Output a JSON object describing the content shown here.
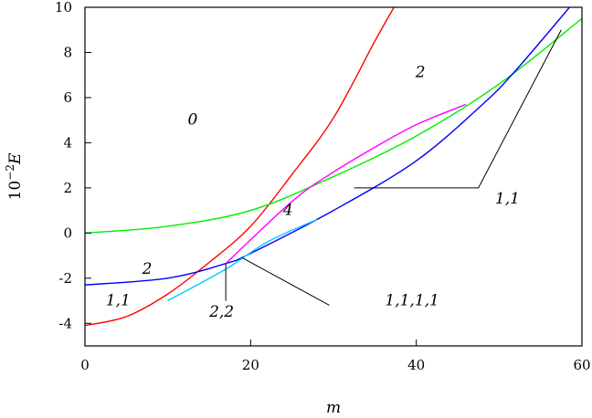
{
  "chart_data": {
    "type": "line",
    "title": "",
    "xlabel": "m",
    "ylabel": {
      "base": "10",
      "exponent": "−2",
      "symbol": "E"
    },
    "xlim": [
      0,
      60
    ],
    "ylim": [
      -5,
      10
    ],
    "x_ticks": [
      0,
      20,
      40,
      60
    ],
    "y_ticks": [
      -4,
      -2,
      0,
      2,
      4,
      6,
      8,
      10
    ],
    "grid": false,
    "legend": "none",
    "series": [
      {
        "color": "#ff0000",
        "x": [
          0,
          5,
          10,
          15,
          20,
          25,
          30,
          35,
          37.3
        ],
        "y": [
          -4.1,
          -3.7,
          -2.7,
          -1.3,
          0.3,
          2.6,
          5.1,
          8.5,
          10
        ]
      },
      {
        "color": "#00ee00",
        "x": [
          0,
          10,
          20,
          30,
          40,
          50,
          60
        ],
        "y": [
          0,
          0.3,
          1.0,
          2.5,
          4.3,
          6.6,
          9.5
        ]
      },
      {
        "color": "#0000ff",
        "x": [
          0,
          10,
          17,
          20,
          30,
          40,
          48,
          52,
          58.5
        ],
        "y": [
          -2.3,
          -2.0,
          -1.35,
          -0.9,
          1.0,
          3.2,
          5.7,
          7.2,
          10
        ]
      },
      {
        "color": "#ff00ff",
        "x": [
          17,
          25,
          30,
          35,
          40,
          46
        ],
        "y": [
          -1.35,
          1.4,
          2.7,
          3.8,
          4.8,
          5.7
        ]
      },
      {
        "color": "#00ccff",
        "x": [
          10,
          17,
          22,
          28
        ],
        "y": [
          -3.0,
          -1.6,
          -0.4,
          0.6
        ]
      }
    ],
    "annotations": [
      {
        "text": "0",
        "x": 13,
        "y": 4.8
      },
      {
        "text": "2",
        "x": 40.5,
        "y": 6.9
      },
      {
        "text": "4",
        "x": 24.5,
        "y": 0.8
      },
      {
        "text": "2",
        "x": 7.5,
        "y": -1.8
      },
      {
        "text": "1,1",
        "x": 4,
        "y": -3.2
      },
      {
        "text": "2,2",
        "x": 16.5,
        "y": -3.7
      },
      {
        "text": "1,1,1,1",
        "x": 39.5,
        "y": -3.2
      },
      {
        "text": "1,1",
        "x": 51,
        "y": 1.3
      }
    ],
    "leader_lines": [
      {
        "points": [
          [
            17,
            -1.35
          ],
          [
            17,
            -3.0
          ]
        ]
      },
      {
        "points": [
          [
            19,
            -1.1
          ],
          [
            29.5,
            -3.2
          ]
        ]
      },
      {
        "points": [
          [
            32.5,
            2.0
          ],
          [
            47.5,
            2.0
          ],
          [
            57.5,
            9.0
          ]
        ]
      }
    ]
  }
}
